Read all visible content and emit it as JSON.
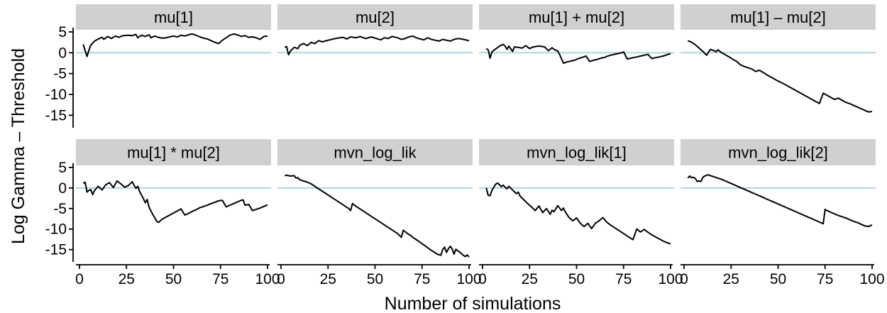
{
  "chart_data": {
    "type": "line",
    "xlabel": "Number of simulations",
    "ylabel": "Log Gamma – Threshold",
    "xlim": [
      0,
      100
    ],
    "ylim": [
      -18,
      5.5
    ],
    "x_ticks": [
      0,
      25,
      50,
      75,
      100
    ],
    "y_ticks": [
      5,
      0,
      -5,
      -10,
      -15
    ],
    "reference_line": {
      "y": 0,
      "color": "#ADD8E6"
    },
    "grid": false,
    "line_color": "#000000",
    "strip_color": "#D0D0D0",
    "panels": [
      {
        "title": "mu[1]",
        "x": [
          2,
          3,
          4,
          5,
          6,
          8,
          10,
          12,
          13,
          15,
          17,
          19,
          21,
          23,
          26,
          28,
          30,
          31,
          33,
          35,
          37,
          38,
          40,
          42,
          44,
          46,
          48,
          50,
          52,
          54,
          56,
          58,
          60,
          62,
          64,
          66,
          68,
          70,
          72,
          74,
          76,
          78,
          80,
          82,
          84,
          86,
          88,
          90,
          92,
          94,
          96,
          98,
          100
        ],
        "y": [
          2.0,
          0.5,
          -0.9,
          0.6,
          1.8,
          2.8,
          3.3,
          3.7,
          3.2,
          3.9,
          3.4,
          4.0,
          3.7,
          4.1,
          4.2,
          4.1,
          4.4,
          3.6,
          4.2,
          3.9,
          4.3,
          3.6,
          4.0,
          3.7,
          3.5,
          3.6,
          3.8,
          4.0,
          3.8,
          4.2,
          4.0,
          4.3,
          4.5,
          4.2,
          3.8,
          3.5,
          3.3,
          2.9,
          2.5,
          2.2,
          3.0,
          3.6,
          4.2,
          4.5,
          4.3,
          3.9,
          4.1,
          3.7,
          3.8,
          3.6,
          3.2,
          3.9,
          4.0
        ]
      },
      {
        "title": "mu[2]",
        "x": [
          2,
          3,
          4,
          5,
          7,
          9,
          10,
          12,
          14,
          16,
          18,
          20,
          22,
          25,
          28,
          30,
          33,
          35,
          37,
          40,
          42,
          45,
          48,
          50,
          53,
          55,
          57,
          59,
          62,
          64,
          66,
          68,
          70,
          72,
          74,
          76,
          78,
          80,
          82,
          84,
          86,
          88,
          90,
          92,
          94,
          96,
          98,
          100
        ],
        "y": [
          1.3,
          1.5,
          -0.5,
          0.4,
          1.3,
          1.0,
          1.8,
          2.2,
          1.7,
          2.5,
          2.2,
          2.9,
          2.6,
          3.0,
          3.3,
          3.5,
          3.7,
          3.3,
          3.8,
          3.6,
          3.9,
          3.4,
          3.8,
          3.5,
          3.1,
          3.6,
          3.4,
          3.9,
          3.6,
          3.2,
          3.4,
          3.8,
          4.0,
          3.6,
          3.3,
          3.1,
          3.6,
          3.2,
          3.0,
          2.8,
          3.2,
          3.0,
          2.8,
          3.2,
          3.4,
          3.3,
          3.1,
          2.9
        ]
      },
      {
        "title": "mu[1] + mu[2]",
        "x": [
          2,
          3,
          4,
          5,
          6,
          7,
          9,
          11,
          12,
          13,
          14,
          16,
          17,
          19,
          21,
          23,
          25,
          27,
          30,
          33,
          35,
          37,
          38,
          40,
          41,
          43,
          45,
          47,
          49,
          51,
          53,
          55,
          57,
          59,
          61,
          63,
          65,
          66,
          68,
          70,
          72,
          74,
          75,
          77,
          79,
          81,
          83,
          85,
          87,
          88,
          90,
          92,
          94,
          96,
          98,
          100
        ],
        "y": [
          1.0,
          0.7,
          -1.3,
          0.2,
          0.6,
          0.9,
          1.6,
          2.0,
          1.6,
          0.8,
          1.6,
          0.3,
          1.4,
          1.3,
          1.1,
          1.7,
          1.0,
          1.4,
          1.6,
          1.4,
          0.5,
          1.2,
          0.8,
          0.4,
          -0.4,
          -2.5,
          -2.2,
          -2.0,
          -1.8,
          -1.4,
          -1.1,
          -0.8,
          -2.1,
          -1.8,
          -1.6,
          -1.3,
          -1.1,
          -0.9,
          -0.6,
          -0.4,
          -0.2,
          0.0,
          0.2,
          -1.5,
          -1.3,
          -1.1,
          -0.9,
          -0.7,
          -0.5,
          -0.4,
          -1.4,
          -1.2,
          -1.0,
          -0.8,
          -0.5,
          -0.2
        ]
      },
      {
        "title": "mu[1] – mu[2]",
        "x": [
          2,
          4,
          6,
          8,
          10,
          12,
          14,
          16,
          17,
          18,
          20,
          22,
          24,
          26,
          28,
          30,
          32,
          34,
          36,
          38,
          40,
          42,
          44,
          46,
          48,
          50,
          52,
          54,
          56,
          58,
          60,
          62,
          64,
          66,
          68,
          70,
          72,
          74,
          76,
          78,
          80,
          82,
          84,
          86,
          88,
          90,
          92,
          94,
          96,
          98,
          100
        ],
        "y": [
          2.9,
          2.5,
          1.9,
          1.1,
          0.3,
          -0.6,
          0.8,
          0.5,
          0.2,
          0.7,
          0.0,
          -0.5,
          -1.0,
          -1.6,
          -2.1,
          -2.9,
          -3.3,
          -3.6,
          -3.9,
          -4.5,
          -4.2,
          -4.7,
          -5.3,
          -5.8,
          -6.3,
          -6.8,
          -7.2,
          -7.7,
          -8.2,
          -8.7,
          -9.2,
          -9.7,
          -10.2,
          -10.7,
          -11.2,
          -11.7,
          -12.2,
          -9.7,
          -10.2,
          -10.7,
          -11.2,
          -10.9,
          -11.4,
          -11.9,
          -12.2,
          -12.6,
          -13.0,
          -13.4,
          -13.8,
          -14.2,
          -14.1
        ]
      },
      {
        "title": "mu[1] * mu[2]",
        "x": [
          2,
          3,
          4,
          5,
          6,
          7,
          8,
          10,
          12,
          14,
          16,
          18,
          20,
          22,
          24,
          26,
          28,
          30,
          31,
          32,
          33,
          34,
          35,
          36,
          37,
          38,
          39,
          40,
          41,
          42,
          44,
          46,
          48,
          50,
          52,
          54,
          56,
          58,
          60,
          62,
          64,
          66,
          68,
          70,
          72,
          74,
          76,
          78,
          80,
          82,
          84,
          86,
          87,
          88,
          90,
          92,
          94,
          96,
          98,
          100
        ],
        "y": [
          1.1,
          1.4,
          -1.0,
          -0.6,
          -0.4,
          -1.6,
          -0.6,
          0.4,
          -0.5,
          0.8,
          1.3,
          0.1,
          1.7,
          1.0,
          0.2,
          0.6,
          1.5,
          -0.1,
          0.4,
          -0.9,
          -1.7,
          -2.6,
          -3.6,
          -2.8,
          -4.7,
          -5.6,
          -6.5,
          -7.2,
          -8.1,
          -8.4,
          -7.6,
          -7.1,
          -6.6,
          -6.1,
          -5.6,
          -5.1,
          -6.6,
          -6.2,
          -5.7,
          -5.3,
          -4.8,
          -4.5,
          -4.2,
          -3.8,
          -3.5,
          -3.1,
          -3.0,
          -4.6,
          -4.2,
          -3.8,
          -3.4,
          -3.0,
          -2.9,
          -4.2,
          -4.0,
          -5.5,
          -5.2,
          -4.9,
          -4.5,
          -4.1
        ]
      },
      {
        "title": "mvn_log_lik",
        "x": [
          2,
          3,
          5,
          7,
          8,
          9,
          10,
          12,
          14,
          16,
          18,
          20,
          22,
          24,
          26,
          28,
          30,
          32,
          34,
          36,
          37,
          38,
          40,
          42,
          44,
          46,
          48,
          50,
          52,
          54,
          56,
          58,
          60,
          62,
          64,
          65,
          67,
          69,
          71,
          73,
          75,
          77,
          79,
          81,
          83,
          85,
          86,
          87,
          88,
          89,
          90,
          91,
          92,
          93,
          94,
          95,
          96,
          97,
          98,
          99,
          100
        ],
        "y": [
          3.0,
          3.1,
          2.9,
          3.0,
          2.4,
          2.5,
          2.0,
          1.7,
          1.4,
          1.0,
          0.4,
          -0.2,
          -0.8,
          -1.4,
          -2.0,
          -2.6,
          -3.2,
          -3.8,
          -4.4,
          -5.0,
          -5.5,
          -3.8,
          -4.5,
          -5.1,
          -5.7,
          -6.3,
          -6.9,
          -7.5,
          -8.1,
          -8.7,
          -9.3,
          -9.9,
          -10.5,
          -11.1,
          -12.0,
          -10.3,
          -11.0,
          -11.6,
          -12.3,
          -12.9,
          -13.6,
          -14.2,
          -14.9,
          -15.5,
          -16.1,
          -16.4,
          -15.0,
          -14.4,
          -15.7,
          -14.8,
          -14.2,
          -14.8,
          -16.1,
          -14.9,
          -15.3,
          -15.6,
          -16.0,
          -16.4,
          -16.7,
          -16.3,
          -16.8
        ]
      },
      {
        "title": "mvn_log_lik[1]",
        "x": [
          2,
          3,
          4,
          5,
          6,
          7,
          8,
          9,
          10,
          11,
          12,
          13,
          14,
          16,
          18,
          19,
          20,
          22,
          24,
          26,
          28,
          30,
          32,
          34,
          36,
          37,
          38,
          40,
          42,
          43,
          44,
          46,
          48,
          50,
          52,
          54,
          56,
          58,
          60,
          62,
          64,
          66,
          68,
          70,
          72,
          74,
          76,
          78,
          80,
          82,
          84,
          86,
          88,
          90,
          92,
          94,
          96,
          98,
          100
        ],
        "y": [
          0.0,
          -1.8,
          -1.9,
          -0.6,
          0.2,
          0.9,
          1.2,
          0.8,
          0.3,
          0.7,
          0.2,
          -0.2,
          0.4,
          -0.5,
          -1.4,
          -1.0,
          -2.0,
          -2.9,
          -3.8,
          -4.6,
          -5.5,
          -4.4,
          -6.0,
          -5.0,
          -6.4,
          -5.4,
          -5.8,
          -4.3,
          -5.5,
          -4.9,
          -5.8,
          -7.2,
          -8.0,
          -7.3,
          -8.6,
          -9.4,
          -8.6,
          -9.9,
          -8.6,
          -8.0,
          -7.2,
          -8.3,
          -9.0,
          -9.6,
          -10.2,
          -10.8,
          -11.4,
          -12.0,
          -12.6,
          -10.0,
          -10.7,
          -10.1,
          -10.8,
          -11.4,
          -11.9,
          -12.4,
          -12.9,
          -13.3,
          -13.6
        ]
      },
      {
        "title": "mvn_log_lik[2]",
        "x": [
          2,
          3,
          4,
          5,
          6,
          7,
          8,
          9,
          10,
          11,
          12,
          13,
          14,
          16,
          18,
          20,
          22,
          24,
          26,
          28,
          30,
          32,
          34,
          36,
          38,
          40,
          42,
          44,
          46,
          48,
          50,
          52,
          54,
          56,
          58,
          60,
          62,
          64,
          66,
          68,
          70,
          72,
          74,
          75,
          76,
          78,
          80,
          82,
          84,
          86,
          88,
          90,
          92,
          94,
          96,
          98,
          100
        ],
        "y": [
          2.4,
          2.9,
          2.5,
          2.6,
          2.3,
          1.6,
          1.7,
          1.6,
          2.6,
          2.9,
          3.1,
          3.2,
          3.0,
          2.7,
          2.4,
          2.1,
          1.7,
          1.3,
          0.9,
          0.5,
          0.1,
          -0.3,
          -0.7,
          -1.1,
          -1.5,
          -1.9,
          -2.3,
          -2.7,
          -3.1,
          -3.5,
          -3.9,
          -4.3,
          -4.7,
          -5.1,
          -5.5,
          -5.9,
          -6.3,
          -6.7,
          -7.1,
          -7.5,
          -7.9,
          -8.3,
          -8.7,
          -5.2,
          -5.5,
          -5.9,
          -6.3,
          -6.7,
          -7.0,
          -7.3,
          -7.7,
          -8.1,
          -8.4,
          -8.8,
          -9.2,
          -9.4,
          -9.0
        ]
      }
    ]
  }
}
